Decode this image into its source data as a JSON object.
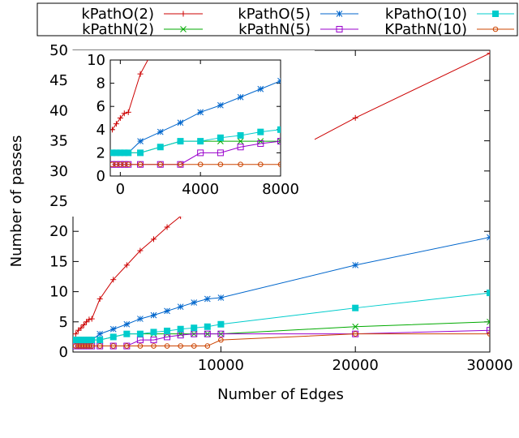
{
  "chart_data": {
    "type": "line",
    "xlabel": "Number of Edges",
    "ylabel": "Number of passes",
    "xlim": [
      -1000,
      30000
    ],
    "ylim": [
      0,
      50
    ],
    "xticks": [
      "10000",
      "20000",
      "30000"
    ],
    "yticks": [
      "0",
      "5",
      "10",
      "15",
      "20",
      "25",
      "30",
      "35",
      "40",
      "45",
      "50"
    ],
    "legend_position": "top",
    "grid": false,
    "series": [
      {
        "name": "kPathO(2)",
        "color": "#cc0000",
        "marker": "plus",
        "x": [
          -800,
          -600,
          -400,
          -200,
          0,
          200,
          400,
          1000,
          2000,
          3000,
          4000,
          5000,
          6000,
          7000,
          8000,
          9000,
          10000,
          20000,
          30000
        ],
        "y": [
          3.0,
          3.6,
          4.0,
          4.5,
          5.0,
          5.4,
          5.5,
          8.8,
          12.0,
          14.4,
          16.8,
          18.7,
          20.7,
          22.5,
          24.1,
          25.6,
          27.0,
          38.8,
          49.5
        ]
      },
      {
        "name": "kPathN(2)",
        "color": "#00aa00",
        "marker": "x",
        "x": [
          -800,
          -600,
          -400,
          -200,
          0,
          200,
          400,
          1000,
          2000,
          3000,
          4000,
          5000,
          6000,
          7000,
          8000,
          9000,
          10000,
          20000,
          30000
        ],
        "y": [
          2.0,
          2.0,
          2.0,
          2.0,
          2.0,
          2.0,
          2.0,
          2.0,
          2.5,
          3.0,
          3.0,
          3.0,
          3.0,
          3.0,
          3.0,
          3.0,
          3.0,
          4.2,
          5.0
        ]
      },
      {
        "name": "kPathO(5)",
        "color": "#0066cc",
        "marker": "star",
        "x": [
          -800,
          -600,
          -400,
          -200,
          0,
          200,
          400,
          1000,
          2000,
          3000,
          4000,
          5000,
          6000,
          7000,
          8000,
          9000,
          10000,
          20000,
          30000
        ],
        "y": [
          2.0,
          2.0,
          2.0,
          2.0,
          2.0,
          2.0,
          2.0,
          3.0,
          3.8,
          4.6,
          5.5,
          6.1,
          6.8,
          7.5,
          8.2,
          8.8,
          9.0,
          14.4,
          19.0
        ]
      },
      {
        "name": "kPathN(5)",
        "color": "#9900cc",
        "marker": "square-open",
        "x": [
          -800,
          -600,
          -400,
          -200,
          0,
          200,
          400,
          1000,
          2000,
          3000,
          4000,
          5000,
          6000,
          7000,
          8000,
          9000,
          10000,
          20000,
          30000
        ],
        "y": [
          1.0,
          1.0,
          1.0,
          1.0,
          1.0,
          1.0,
          1.0,
          1.0,
          1.0,
          1.0,
          2.0,
          2.0,
          2.5,
          2.8,
          3.0,
          3.0,
          3.0,
          3.0,
          3.6
        ]
      },
      {
        "name": "kPathO(10)",
        "color": "#00cccc",
        "marker": "square-filled",
        "x": [
          -800,
          -600,
          -400,
          -200,
          0,
          200,
          400,
          1000,
          2000,
          3000,
          4000,
          5000,
          6000,
          7000,
          8000,
          9000,
          10000,
          20000,
          30000
        ],
        "y": [
          2.0,
          2.0,
          2.0,
          2.0,
          2.0,
          2.0,
          2.0,
          2.0,
          2.5,
          3.0,
          3.0,
          3.3,
          3.5,
          3.8,
          4.0,
          4.2,
          4.6,
          7.3,
          9.8
        ]
      },
      {
        "name": "KPathN(10)",
        "color": "#cc4400",
        "marker": "circle-open",
        "x": [
          -800,
          -600,
          -400,
          -200,
          0,
          200,
          400,
          1000,
          2000,
          3000,
          4000,
          5000,
          6000,
          7000,
          8000,
          9000,
          10000,
          20000,
          30000
        ],
        "y": [
          1.0,
          1.0,
          1.0,
          1.0,
          1.0,
          1.0,
          1.0,
          1.0,
          1.0,
          1.0,
          1.0,
          1.0,
          1.0,
          1.0,
          1.0,
          1.0,
          2.0,
          3.0,
          3.0
        ]
      }
    ],
    "inset": {
      "xlim": [
        -500,
        8000
      ],
      "ylim": [
        0,
        10
      ],
      "xticks": [
        "0",
        "4000",
        "8000"
      ],
      "yticks": [
        "0",
        "2",
        "4",
        "6",
        "8",
        "10"
      ]
    }
  }
}
